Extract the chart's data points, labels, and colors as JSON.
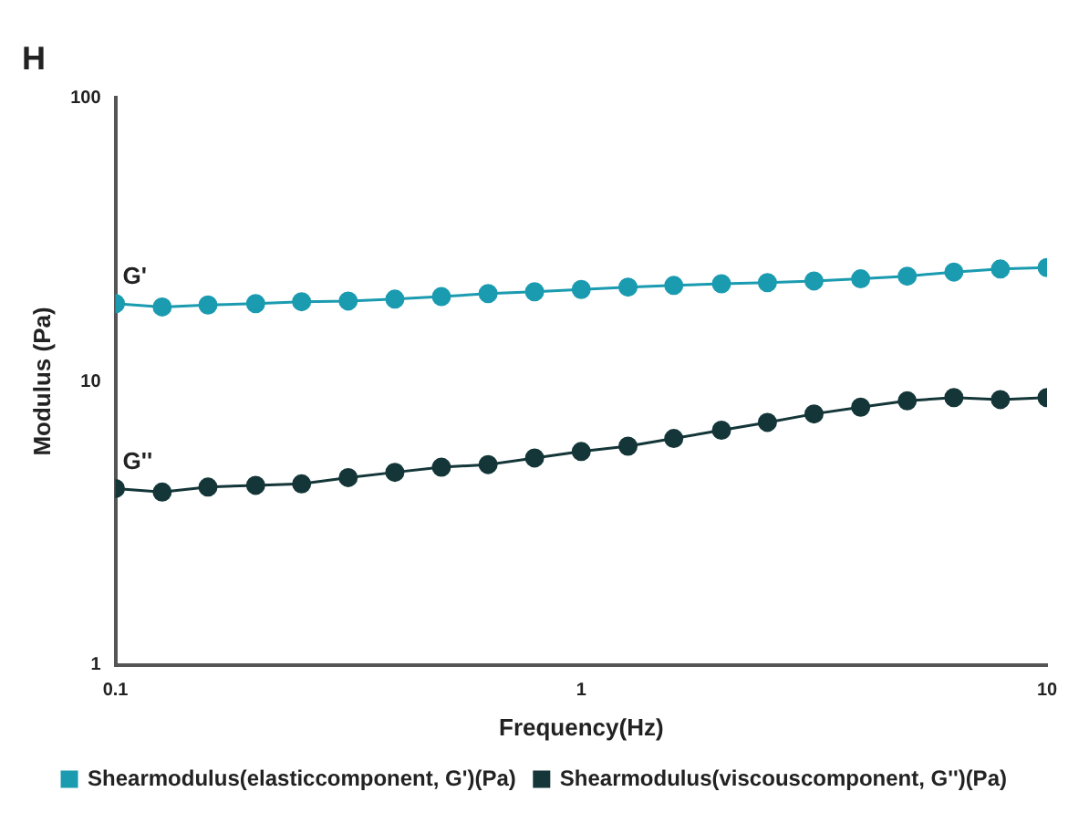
{
  "chart_data": {
    "type": "line",
    "title": "H",
    "xlabel": "Frequency(Hz)",
    "ylabel": "Modulus (Pa)",
    "x": [
      0.1,
      0.126,
      0.158,
      0.2,
      0.251,
      0.316,
      0.398,
      0.501,
      0.631,
      0.794,
      1,
      1.26,
      1.58,
      2,
      2.51,
      3.16,
      3.98,
      5.01,
      6.31,
      7.94,
      10
    ],
    "series": [
      {
        "name": "Shearmodulus(elasticcomponent, G')(Pa)",
        "color": "#1a9bb0",
        "values": [
          18.8,
          18.3,
          18.6,
          18.8,
          19.1,
          19.2,
          19.5,
          19.9,
          20.4,
          20.7,
          21.1,
          21.5,
          21.8,
          22.1,
          22.3,
          22.6,
          23.0,
          23.5,
          24.3,
          24.9,
          25.2
        ]
      },
      {
        "name": "Shearmodulus(viscouscomponent, G'')(Pa)",
        "color": "#143638",
        "values": [
          4.19,
          4.07,
          4.24,
          4.3,
          4.35,
          4.58,
          4.78,
          4.98,
          5.09,
          5.37,
          5.66,
          5.91,
          6.29,
          6.73,
          7.17,
          7.68,
          8.11,
          8.54,
          8.77,
          8.63,
          8.77
        ]
      }
    ],
    "annotations": [
      {
        "text": "G'",
        "x": 0.1,
        "y": 18.8
      },
      {
        "text": "G''",
        "x": 0.1,
        "y": 4.19
      }
    ],
    "log": "xy",
    "xlim": [
      0.1,
      10
    ],
    "xticks": [
      0.1,
      1,
      10
    ],
    "ylim": [
      1,
      100
    ],
    "yticks": [
      1,
      10,
      100
    ],
    "grid": false,
    "legend": "bottom",
    "marker": "circle",
    "line_style": "solid"
  }
}
